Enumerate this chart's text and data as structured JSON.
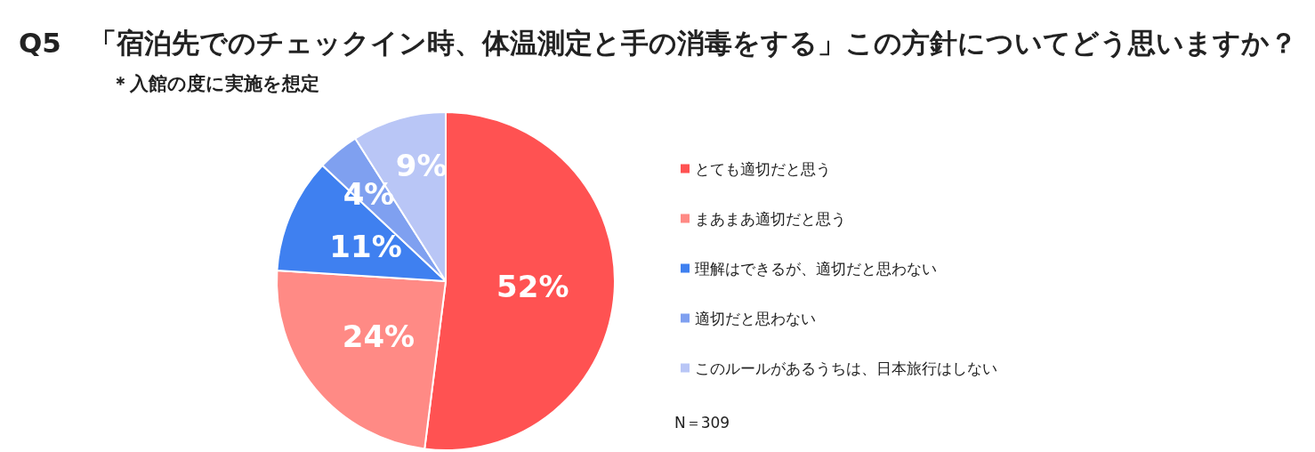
{
  "chart_data": {
    "type": "pie",
    "title": "Q5　「宿泊先でのチェックイン時、体温測定と手の消毒をする」この方針についてどう思いますか？",
    "subtitle": "＊入館の度に実施を想定",
    "categories": [
      "とても適切だと思う",
      "まあまあ適切だと思う",
      "理解はできるが、適切だと思わない",
      "適切だと思わない",
      "このルールがあるうちは、日本旅行はしない"
    ],
    "values": [
      52,
      24,
      11,
      4,
      9
    ],
    "colors": [
      "#ff5252",
      "#ff8a85",
      "#3f80f0",
      "#7fa0f0",
      "#b9c6f6"
    ],
    "value_labels": [
      "52%",
      "24%",
      "11%",
      "4%",
      "9%"
    ],
    "legend": "right",
    "annotations": [
      "N＝309"
    ]
  }
}
